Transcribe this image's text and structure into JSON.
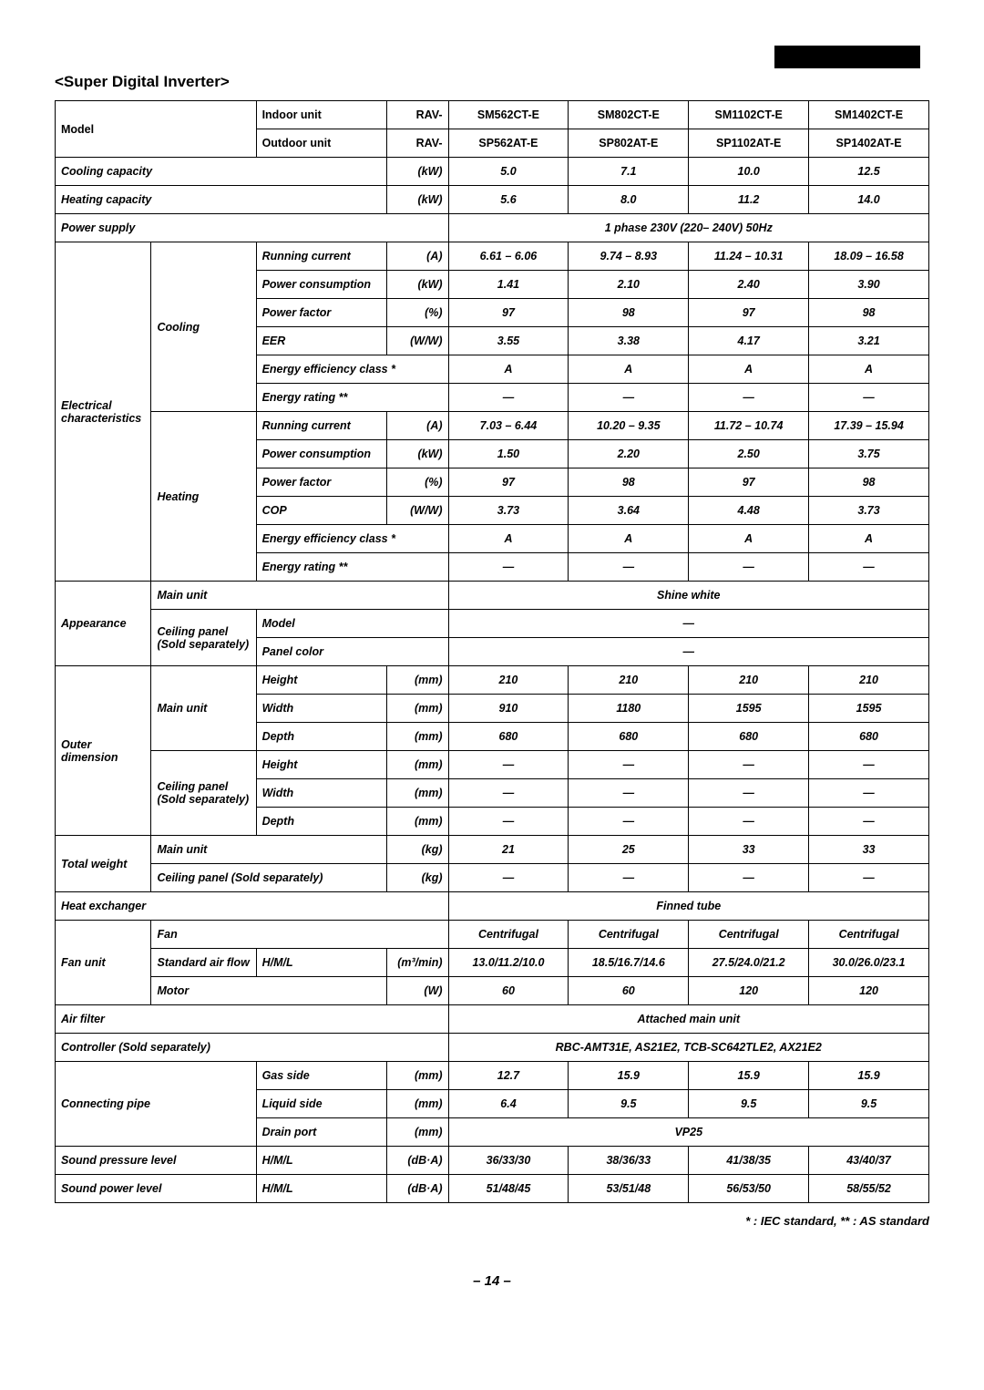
{
  "title": "<Super Digital Inverter>",
  "headers": {
    "model": "Model",
    "indoor": "Indoor unit",
    "outdoor": "Outdoor unit",
    "rav": "RAV-",
    "m1i": "SM562CT-E",
    "m2i": "SM802CT-E",
    "m3i": "SM1102CT-E",
    "m4i": "SM1402CT-E",
    "m1o": "SP562AT-E",
    "m2o": "SP802AT-E",
    "m3o": "SP1102AT-E",
    "m4o": "SP1402AT-E"
  },
  "labels": {
    "cooling_cap": "Cooling capacity",
    "kW": "(kW)",
    "heating_cap": "Heating capacity",
    "power_supply": "Power supply",
    "elec": "Electrical characteristics",
    "cooling": "Cooling",
    "heating": "Heating",
    "run_cur": "Running current",
    "A": "(A)",
    "pow_con": "Power consumption",
    "pow_fac": "Power factor",
    "pct": "(%)",
    "eer": "EER",
    "ww": "(W/W)",
    "cop": "COP",
    "eec": "Energy efficiency class *",
    "er": "Energy rating **",
    "appearance": "Appearance",
    "main_unit": "Main unit",
    "ceiling_panel": "Ceiling panel (Sold separately)",
    "model_l": "Model",
    "panel_color": "Panel color",
    "outer_dim": "Outer dimension",
    "height": "Height",
    "width": "Width",
    "depth": "Depth",
    "mm": "(mm)",
    "total_weight": "Total weight",
    "kg": "(kg)",
    "cps": "Ceiling panel (Sold separately)",
    "heat_exch": "Heat exchanger",
    "fan_unit": "Fan unit",
    "fan": "Fan",
    "std_air": "Standard air flow",
    "hml": "H/M/L",
    "m3min": "(m³/min)",
    "motor": "Motor",
    "W": "(W)",
    "air_filter": "Air filter",
    "controller": "Controller (Sold separately)",
    "conn_pipe": "Connecting pipe",
    "gas": "Gas side",
    "liquid": "Liquid side",
    "drain": "Drain port",
    "spl": "Sound pressure level",
    "dba": "(dB·A)",
    "spwl": "Sound power level"
  },
  "vals": {
    "cool_cap": [
      "5.0",
      "7.1",
      "10.0",
      "12.5"
    ],
    "heat_cap": [
      "5.6",
      "8.0",
      "11.2",
      "14.0"
    ],
    "psupply": "1 phase 230V (220– 240V) 50Hz",
    "c_run": [
      "6.61 – 6.06",
      "9.74 – 8.93",
      "11.24 – 10.31",
      "18.09 – 16.58"
    ],
    "c_pow": [
      "1.41",
      "2.10",
      "2.40",
      "3.90"
    ],
    "c_pf": [
      "97",
      "98",
      "97",
      "98"
    ],
    "c_eer": [
      "3.55",
      "3.38",
      "4.17",
      "3.21"
    ],
    "c_eec": [
      "A",
      "A",
      "A",
      "A"
    ],
    "c_er": [
      "—",
      "—",
      "—",
      "—"
    ],
    "h_run": [
      "7.03 – 6.44",
      "10.20 – 9.35",
      "11.72 – 10.74",
      "17.39 – 15.94"
    ],
    "h_pow": [
      "1.50",
      "2.20",
      "2.50",
      "3.75"
    ],
    "h_pf": [
      "97",
      "98",
      "97",
      "98"
    ],
    "h_cop": [
      "3.73",
      "3.64",
      "4.48",
      "3.73"
    ],
    "h_eec": [
      "A",
      "A",
      "A",
      "A"
    ],
    "h_er": [
      "—",
      "—",
      "—",
      "—"
    ],
    "shine": "Shine white",
    "dash": "—",
    "mu_h": [
      "210",
      "210",
      "210",
      "210"
    ],
    "mu_w": [
      "910",
      "1180",
      "1595",
      "1595"
    ],
    "mu_d": [
      "680",
      "680",
      "680",
      "680"
    ],
    "cp_h": [
      "—",
      "—",
      "—",
      "—"
    ],
    "cp_w": [
      "—",
      "—",
      "—",
      "—"
    ],
    "cp_d": [
      "—",
      "—",
      "—",
      "—"
    ],
    "tw_mu": [
      "21",
      "25",
      "33",
      "33"
    ],
    "tw_cp": [
      "—",
      "—",
      "—",
      "—"
    ],
    "finned": "Finned tube",
    "fan_v": [
      "Centrifugal",
      "Centrifugal",
      "Centrifugal",
      "Centrifugal"
    ],
    "airflow": [
      "13.0/11.2/10.0",
      "18.5/16.7/14.6",
      "27.5/24.0/21.2",
      "30.0/26.0/23.1"
    ],
    "motor_v": [
      "60",
      "60",
      "120",
      "120"
    ],
    "attached": "Attached main unit",
    "controller_v": "RBC-AMT31E, AS21E2, TCB-SC642TLE2, AX21E2",
    "gas_v": [
      "12.7",
      "15.9",
      "15.9",
      "15.9"
    ],
    "liq_v": [
      "6.4",
      "9.5",
      "9.5",
      "9.5"
    ],
    "vp25": "VP25",
    "spl_v": [
      "36/33/30",
      "38/36/33",
      "41/38/35",
      "43/40/37"
    ],
    "spwl_v": [
      "51/48/45",
      "53/51/48",
      "56/53/50",
      "58/55/52"
    ]
  },
  "footnote": "* : IEC standard,  ** : AS standard",
  "pagenum": "– 14 –"
}
